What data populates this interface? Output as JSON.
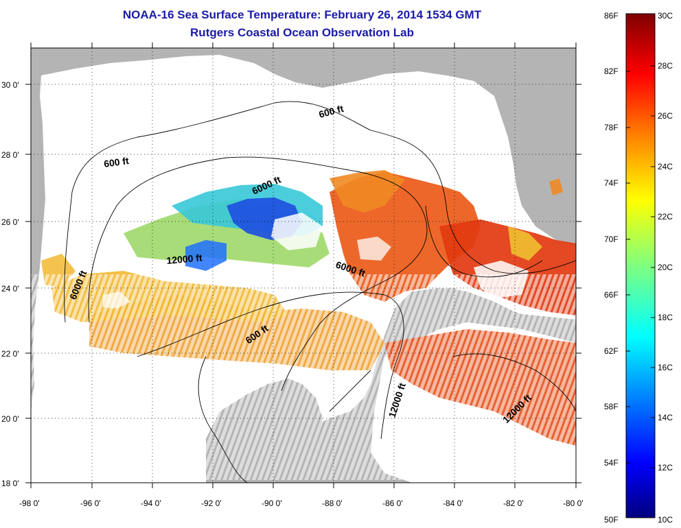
{
  "title": {
    "line1": "NOAA-16 Sea Surface Temperature:  February 26, 2014 1534 GMT",
    "line2": "Rutgers Coastal Ocean Observation Lab"
  },
  "map": {
    "lon_range": [
      -98,
      -80
    ],
    "lat_range": [
      18,
      31
    ],
    "lon_ticks": [
      "-98 0'",
      "-96 0'",
      "-94 0'",
      "-92 0'",
      "-90 0'",
      "-88 0'",
      "-86 0'",
      "-84 0'",
      "-82 0'",
      "-80 0'"
    ],
    "lat_ticks": [
      "18 0'",
      "20 0'",
      "22 0'",
      "24 0'",
      "26 0'",
      "28 0'",
      "30 0'"
    ],
    "grid": "dotted",
    "land_color": "#b4b4b4",
    "contour_labels": [
      "600 ft",
      "600 ft",
      "6000 ft",
      "12000 ft",
      "6000 ft",
      "6000 ft",
      "600 ft",
      "12000 ft",
      "12000 ft"
    ]
  },
  "colorbar": {
    "fahrenheit_labels": [
      "86F",
      "82F",
      "78F",
      "74F",
      "70F",
      "66F",
      "62F",
      "58F",
      "54F",
      "50F"
    ],
    "celsius_labels": [
      "30C",
      "28C",
      "26C",
      "24C",
      "22C",
      "20C",
      "18C",
      "16C",
      "14C",
      "12C",
      "10C"
    ],
    "colors": [
      "#00007f",
      "#0000ff",
      "#007fff",
      "#00ffff",
      "#7fff7f",
      "#ffff00",
      "#ff7f00",
      "#ff0000",
      "#7f0000"
    ]
  }
}
